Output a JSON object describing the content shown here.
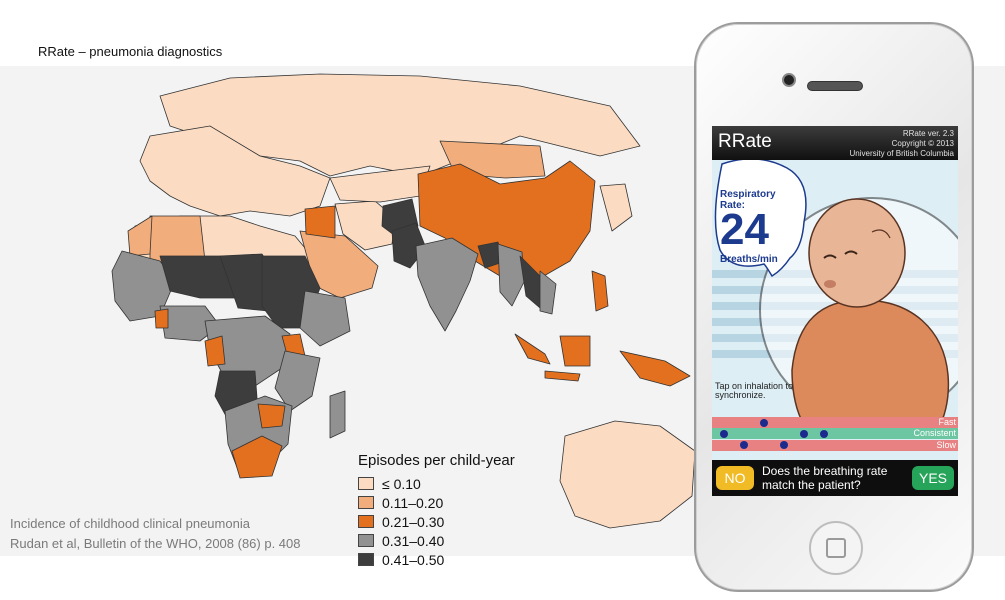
{
  "slide": {
    "title": "RRate – pneumonia diagnostics",
    "citation_line1": "Incidence of childhood clinical pneumonia",
    "citation_line2": "Rudan et al, Bulletin of the WHO, 2008 (86) p. 408"
  },
  "legend": {
    "title": "Episodes per child-year",
    "items": [
      {
        "label": "≤ 0.10",
        "color": "#fbdcc3"
      },
      {
        "label": "0.11–0.20",
        "color": "#f2ad7c"
      },
      {
        "label": "0.21–0.30",
        "color": "#e2701f"
      },
      {
        "label": "0.31–0.40",
        "color": "#919191"
      },
      {
        "label": "0.41–0.50",
        "color": "#3d3d3d"
      }
    ]
  },
  "app": {
    "title": "RRate",
    "version_line1": "RRate ver. 2.3",
    "version_line2": "Copyright © 2013",
    "version_line3": "University of British Columbia",
    "rate_label": "Respiratory Rate:",
    "rate_value": "24",
    "rate_unit": "Breaths/min",
    "tap_hint": "Tap on inhalation to synchronize.",
    "lanes": {
      "fast": "Fast",
      "consistent": "Consistent",
      "slow": "Slow"
    },
    "no_label": "NO",
    "yes_label": "YES",
    "question": "Does the breathing rate match the patient?"
  }
}
